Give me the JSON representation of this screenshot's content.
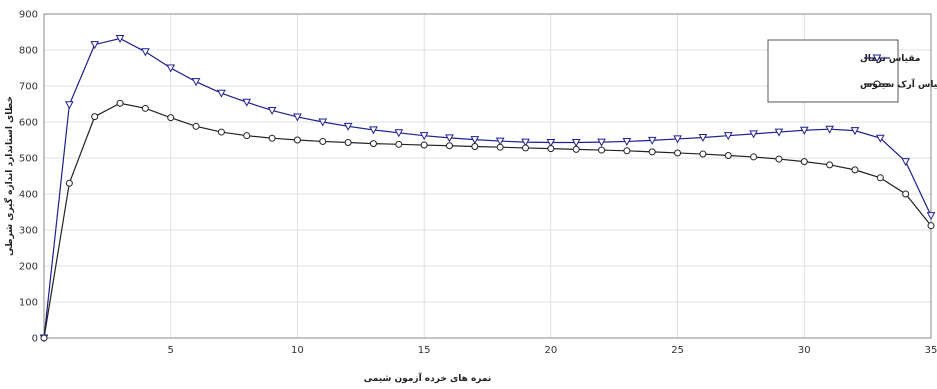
{
  "chart_data": {
    "type": "line",
    "title": "",
    "xlabel": "نمره های خرده آزمون شیمی",
    "ylabel": "خطای استاندارد اندازه گیری شرطی",
    "xlim": [
      0,
      35
    ],
    "ylim": [
      0,
      900
    ],
    "x_ticks": [
      5,
      10,
      15,
      20,
      25,
      30,
      35
    ],
    "y_ticks": [
      0,
      100,
      200,
      300,
      400,
      500,
      600,
      700,
      800,
      900
    ],
    "grid": true,
    "legend_position": "top-right",
    "x": [
      0,
      1,
      2,
      3,
      4,
      5,
      6,
      7,
      8,
      9,
      10,
      11,
      12,
      13,
      14,
      15,
      16,
      17,
      18,
      19,
      20,
      21,
      22,
      23,
      24,
      25,
      26,
      27,
      28,
      29,
      30,
      31,
      32,
      33,
      34,
      35
    ],
    "series": [
      {
        "name": "مقیاس نرمال",
        "color": "#1f1f8f",
        "marker": "triangle-down",
        "values": [
          0,
          648,
          815,
          832,
          795,
          750,
          712,
          680,
          655,
          632,
          614,
          600,
          588,
          578,
          570,
          562,
          556,
          551,
          547,
          544,
          543,
          543,
          544,
          546,
          549,
          553,
          557,
          562,
          567,
          572,
          577,
          580,
          576,
          555,
          490,
          340
        ]
      },
      {
        "name": "مقیاس آرک سینوس",
        "color": "#222222",
        "marker": "circle",
        "values": [
          0,
          430,
          615,
          652,
          638,
          612,
          588,
          572,
          562,
          555,
          550,
          546,
          543,
          540,
          538,
          536,
          534,
          532,
          530,
          528,
          526,
          524,
          522,
          520,
          517,
          514,
          511,
          507,
          503,
          497,
          490,
          481,
          467,
          445,
          400,
          312
        ]
      }
    ]
  }
}
